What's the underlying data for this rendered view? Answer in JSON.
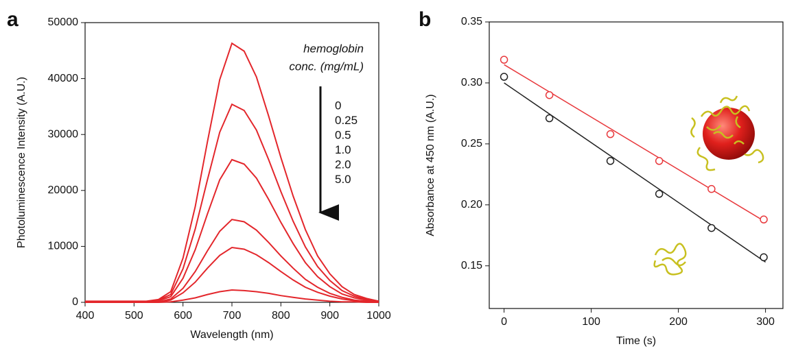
{
  "chart_data": [
    {
      "type": "line",
      "label": "a",
      "xlabel": "Wavelength (nm)",
      "ylabel": "Photoluminescence Intensity (A.U.)",
      "annotation": [
        "hemoglobin",
        "conc. (mg/mL)"
      ],
      "xlim": [
        400,
        1000
      ],
      "xticks": [
        400,
        500,
        600,
        700,
        800,
        900,
        1000
      ],
      "ylim": [
        0,
        50000
      ],
      "yticks": [
        0,
        10000,
        20000,
        30000,
        40000,
        50000
      ],
      "x": [
        400,
        425,
        450,
        475,
        500,
        525,
        550,
        575,
        600,
        625,
        650,
        675,
        700,
        725,
        750,
        775,
        800,
        825,
        850,
        875,
        900,
        925,
        950,
        975,
        1000
      ],
      "series": [
        {
          "name": "0",
          "color": "#e3262b",
          "values": [
            200,
            200,
            200,
            200,
            200,
            200,
            500,
            1900,
            7900,
            17100,
            28700,
            39800,
            46300,
            44900,
            40300,
            33300,
            25900,
            19000,
            13000,
            8300,
            5100,
            2800,
            1400,
            700,
            200
          ]
        },
        {
          "name": "0.25",
          "color": "#e3262b",
          "values": [
            100,
            100,
            100,
            100,
            100,
            100,
            400,
            1400,
            6000,
            13100,
            21900,
            30400,
            35400,
            34300,
            30800,
            25500,
            19800,
            14500,
            9900,
            6400,
            3900,
            2100,
            1100,
            500,
            200
          ]
        },
        {
          "name": "0.5",
          "color": "#e3262b",
          "values": [
            100,
            100,
            100,
            100,
            100,
            100,
            300,
            1000,
            4300,
            9400,
            15800,
            21900,
            25500,
            24700,
            22200,
            18400,
            14300,
            10500,
            7100,
            4600,
            2800,
            1500,
            800,
            400,
            100
          ]
        },
        {
          "name": "1.0",
          "color": "#e3262b",
          "values": [
            100,
            100,
            100,
            100,
            100,
            100,
            100,
            600,
            2500,
            5500,
            9200,
            12700,
            14800,
            14400,
            12900,
            10700,
            8300,
            6100,
            4100,
            2700,
            1600,
            900,
            400,
            200,
            100
          ]
        },
        {
          "name": "2.0",
          "color": "#e3262b",
          "values": [
            0,
            0,
            0,
            0,
            0,
            0,
            100,
            400,
            1700,
            3600,
            6100,
            8400,
            9800,
            9500,
            8500,
            7100,
            5500,
            4000,
            2700,
            1800,
            1100,
            600,
            300,
            100,
            0
          ]
        },
        {
          "name": "5.0",
          "color": "#e3262b",
          "values": [
            0,
            0,
            0,
            0,
            0,
            0,
            0,
            100,
            400,
            800,
            1400,
            1900,
            2200,
            2100,
            1900,
            1600,
            1200,
            900,
            600,
            400,
            200,
            100,
            100,
            0,
            0
          ]
        }
      ]
    },
    {
      "type": "scatter",
      "label": "b",
      "xlabel": "Time (s)",
      "ylabel": "Absorbance at 450 nm (A.U.)",
      "xlim": [
        -17,
        320
      ],
      "xticks": [
        0,
        100,
        200,
        300
      ],
      "ylim": [
        0.115,
        0.35
      ],
      "yticks": [
        {
          "value": 0.15,
          "label": "0.15"
        },
        {
          "value": 0.2,
          "label": "0.20"
        },
        {
          "value": 0.25,
          "label": "0.25"
        },
        {
          "value": 0.3,
          "label": "0.30"
        },
        {
          "value": 0.35,
          "label": "0.35"
        }
      ],
      "series": [
        {
          "color": "#e8383c",
          "x": [
            0,
            52,
            122,
            178,
            238,
            298
          ],
          "values": [
            0.319,
            0.29,
            0.258,
            0.236,
            0.213,
            0.188
          ],
          "fit": {
            "x": [
              0,
              300
            ],
            "values": [
              0.315,
              0.186
            ]
          }
        },
        {
          "color": "#222222",
          "x": [
            0,
            52,
            122,
            178,
            238,
            298
          ],
          "values": [
            0.305,
            0.271,
            0.236,
            0.209,
            0.181,
            0.157
          ],
          "fit": {
            "x": [
              0,
              300
            ],
            "values": [
              0.3,
              0.153
            ]
          }
        }
      ]
    }
  ]
}
